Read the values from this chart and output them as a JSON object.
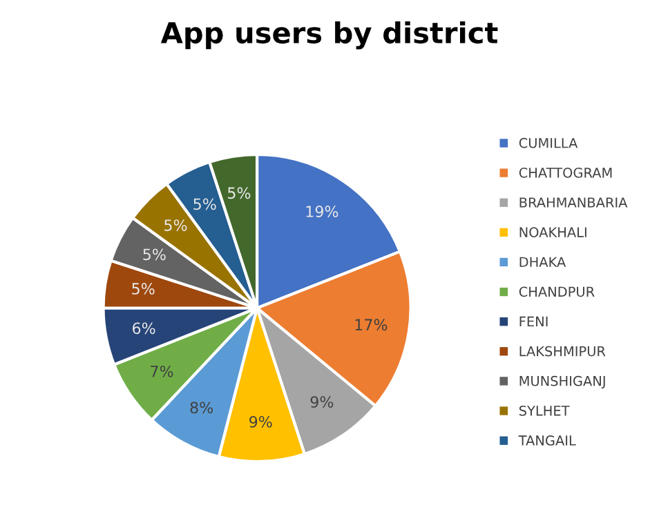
{
  "chart_data": {
    "type": "pie",
    "title": "App users by district",
    "categories": [
      "CUMILLA",
      "CHATTOGRAM",
      "BRAHMANBARIA",
      "NOAKHALI",
      "DHAKA",
      "CHANDPUR",
      "FENI",
      "LAKSHMIPUR",
      "MUNSHIGANJ",
      "SYLHET",
      "TANGAIL",
      null
    ],
    "values": [
      19,
      17,
      9,
      9,
      8,
      7,
      6,
      5,
      5,
      5,
      5,
      5
    ],
    "colors": [
      "#4472c4",
      "#ed7d31",
      "#a5a5a5",
      "#ffc000",
      "#5b9bd5",
      "#70ad47",
      "#264478",
      "#9e480e",
      "#636363",
      "#997300",
      "#255e91",
      "#43682b"
    ],
    "value_labels": [
      "19%",
      "17%",
      "9%",
      "9%",
      "8%",
      "7%",
      "6%",
      "5%",
      "5%",
      "5%",
      "5%",
      "5%"
    ],
    "legend": "right"
  }
}
